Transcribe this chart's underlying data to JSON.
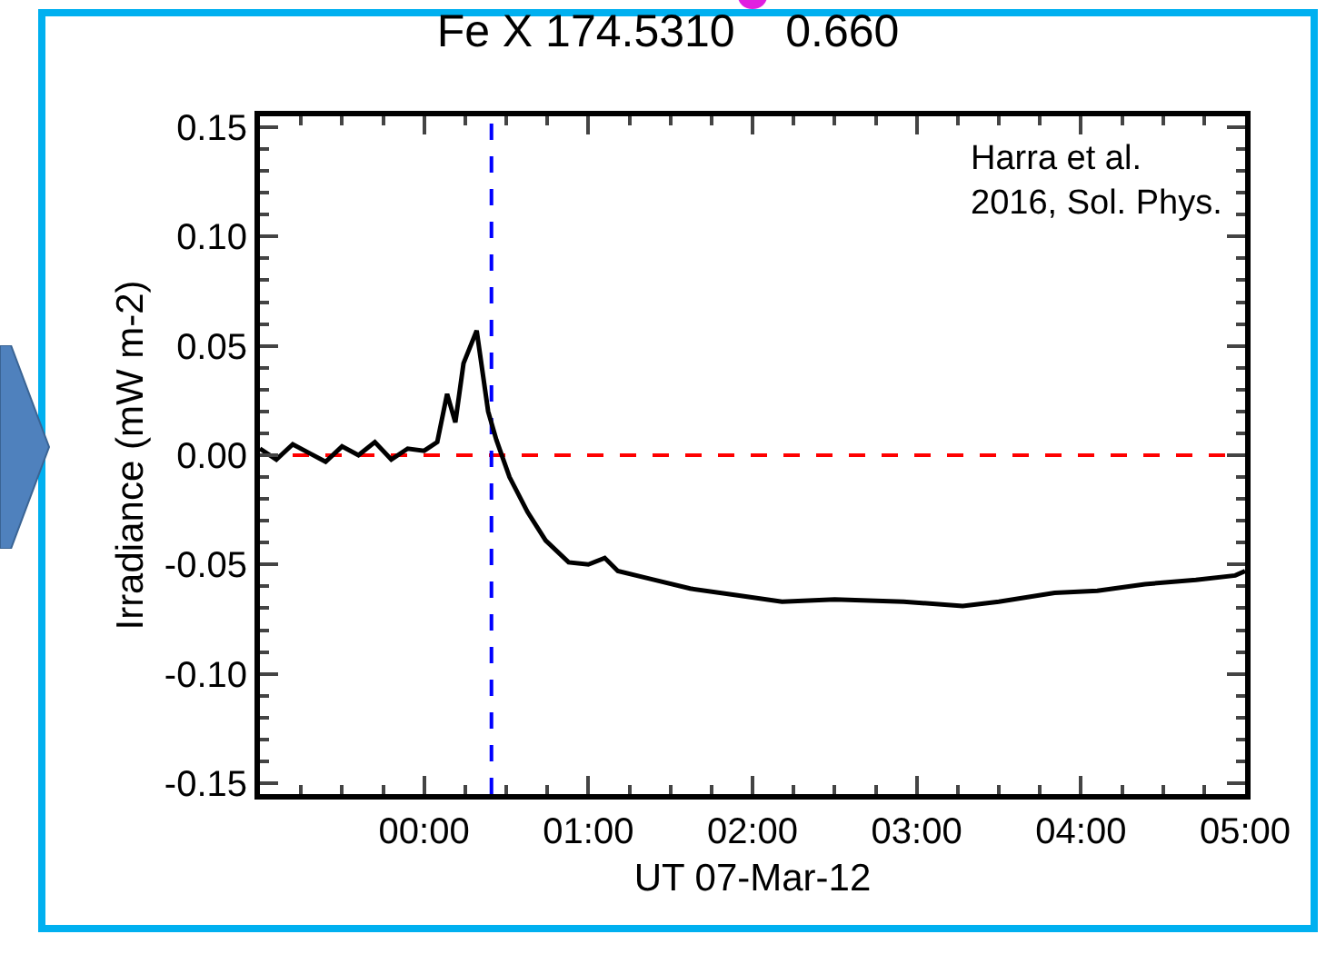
{
  "chart_data": {
    "type": "line",
    "title": "Fe X 174.5310    0.660",
    "xlabel": "UT 07-Mar-12",
    "ylabel": "Irradiance (mW m-2)",
    "annotations": [
      "Harra et al.\n2016, Sol. Phys."
    ],
    "x": [
      -1,
      -0.9,
      -0.8,
      -0.7,
      -0.6,
      -0.5,
      -0.4,
      -0.3,
      -0.2,
      -0.1,
      0,
      0.08,
      0.14,
      0.19,
      0.24,
      0.32,
      0.39,
      0.44,
      0.52,
      0.63,
      0.74,
      0.88,
      1.0,
      1.1,
      1.18,
      1.4,
      1.62,
      1.9,
      2.18,
      2.5,
      2.92,
      3.28,
      3.5,
      3.84,
      4.1,
      4.39,
      4.7,
      4.94,
      5
    ],
    "series": [
      {
        "color": "#000000",
        "values": [
          0.003,
          -0.002,
          0.005,
          0.001,
          -0.003,
          0.004,
          0,
          0.006,
          -0.002,
          0.003,
          0.002,
          0.006,
          0.028,
          0.015,
          0.042,
          0.057,
          0.02,
          0.007,
          -0.01,
          -0.026,
          -0.039,
          -0.049,
          -0.05,
          -0.047,
          -0.053,
          -0.057,
          -0.061,
          -0.064,
          -0.067,
          -0.066,
          -0.067,
          -0.069,
          -0.067,
          -0.063,
          -0.062,
          -0.059,
          -0.057,
          -0.055,
          -0.053
        ]
      }
    ],
    "xlim": [
      -1,
      5
    ],
    "xticks": [
      {
        "value": 0,
        "label": "00:00"
      },
      {
        "value": 1,
        "label": "01:00"
      },
      {
        "value": 2,
        "label": "02:00"
      },
      {
        "value": 3,
        "label": "03:00"
      },
      {
        "value": 4,
        "label": "04:00"
      },
      {
        "value": 5,
        "label": "05:00"
      }
    ],
    "ylim": [
      -0.155,
      0.155
    ],
    "yticks": [
      {
        "value": 0.15,
        "label": "0.15"
      },
      {
        "value": 0.1,
        "label": "0.10"
      },
      {
        "value": 0.05,
        "label": "0.05"
      },
      {
        "value": 0,
        "label": "0.00"
      },
      {
        "value": -0.05,
        "label": "-0.05"
      },
      {
        "value": -0.1,
        "label": "-0.10"
      },
      {
        "value": -0.15,
        "label": "-0.15"
      }
    ],
    "ref_lines": [
      {
        "axis": "y",
        "value": 0,
        "color": "#ff0000",
        "line_style": "dashed"
      },
      {
        "axis": "x",
        "value": 0.41,
        "color": "#0000ff",
        "line_style": "dashed"
      }
    ],
    "marker": "none",
    "line_style": "solid"
  }
}
